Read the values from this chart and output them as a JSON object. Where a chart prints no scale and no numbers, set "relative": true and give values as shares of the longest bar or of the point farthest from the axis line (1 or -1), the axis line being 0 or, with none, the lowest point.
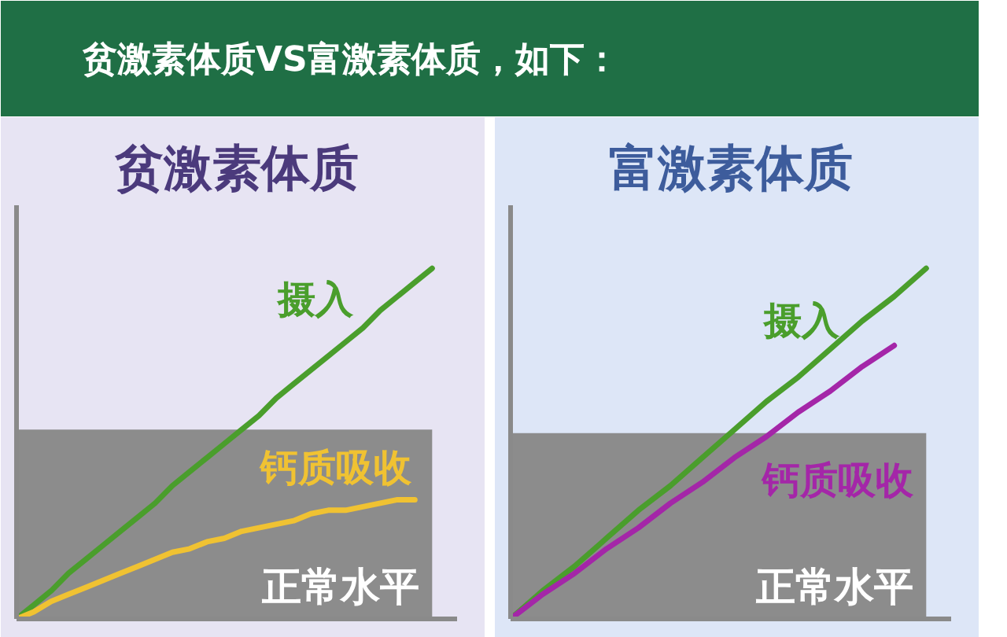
{
  "chart_data": [
    {
      "type": "line",
      "title": "贫激素体质",
      "annotations": [
        "贫激素体质VS富激素体质，如下："
      ],
      "relative": true,
      "categories": [
        null,
        null,
        null,
        null,
        null,
        null,
        null,
        null,
        null,
        null,
        null,
        null,
        null,
        null,
        null,
        null,
        null,
        null,
        null,
        null,
        null,
        null,
        null,
        null,
        null
      ],
      "series": [
        {
          "name": "摄入",
          "color": "#4a9e2c",
          "values": [
            0,
            0.04,
            0.08,
            0.13,
            0.17,
            0.21,
            0.25,
            0.29,
            0.33,
            0.38,
            0.42,
            0.46,
            0.5,
            0.54,
            0.58,
            0.63,
            0.67,
            0.71,
            0.75,
            0.79,
            0.83,
            0.88,
            0.92,
            0.96,
            1
          ]
        },
        {
          "name": "钙质吸收",
          "color": "#f0c232",
          "values": [
            0,
            0.02,
            0.05,
            0.07,
            0.09,
            0.11,
            0.13,
            0.15,
            0.17,
            0.19,
            0.2,
            0.22,
            0.23,
            0.25,
            0.26,
            0.27,
            0.28,
            0.3,
            0.31,
            0.31,
            0.32,
            0.33,
            0.34,
            0.34,
            null
          ]
        }
      ],
      "bands": [
        {
          "axis": "y",
          "from": 0,
          "to": 0.54,
          "label": "正常水平",
          "color": "#8c8c8c"
        }
      ]
    },
    {
      "type": "line",
      "title": "富激素体质",
      "relative": true,
      "categories": [
        null,
        null,
        null,
        null,
        null,
        null,
        null,
        null,
        null,
        null,
        null,
        null,
        null,
        null
      ],
      "series": [
        {
          "name": "摄入",
          "color": "#4a9e2c",
          "values": [
            0,
            0.08,
            0.15,
            0.23,
            0.31,
            0.38,
            0.46,
            0.54,
            0.62,
            0.69,
            0.77,
            0.85,
            0.92,
            1
          ]
        },
        {
          "name": "钙质吸收",
          "color": "#a426a8",
          "values": [
            0,
            0.07,
            0.13,
            0.2,
            0.26,
            0.33,
            0.39,
            0.46,
            0.52,
            0.59,
            0.65,
            0.72,
            0.78,
            null
          ]
        }
      ],
      "bands": [
        {
          "axis": "y",
          "from": 0,
          "to": 0.53,
          "label": "正常水平",
          "color": "#8c8c8c"
        }
      ]
    }
  ]
}
